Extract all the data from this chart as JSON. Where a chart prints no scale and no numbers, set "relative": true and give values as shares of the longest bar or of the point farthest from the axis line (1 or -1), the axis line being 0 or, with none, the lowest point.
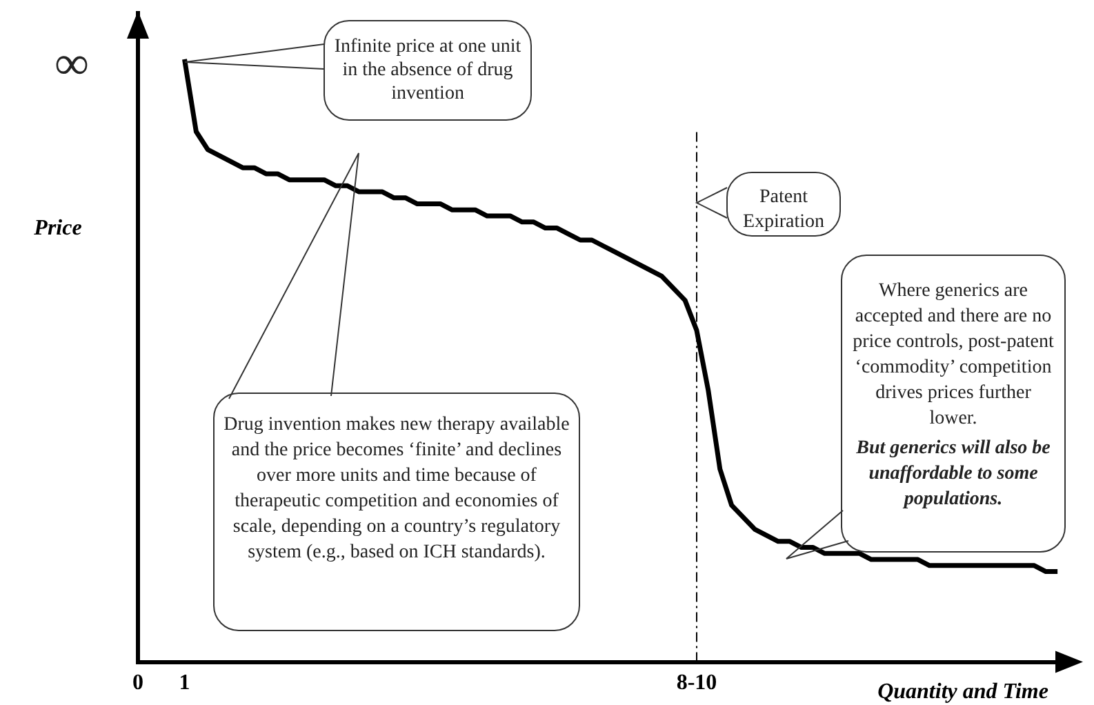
{
  "chart_data": {
    "type": "line",
    "relative": true,
    "xlabel": "Quantity and Time",
    "ylabel": "Price",
    "categories": [
      "0",
      null,
      null,
      null,
      "1",
      null,
      null,
      null,
      null,
      null,
      null,
      null,
      null,
      null,
      null,
      null,
      null,
      null,
      null,
      null,
      null,
      null,
      null,
      null,
      null,
      null,
      null,
      null,
      null,
      null,
      null,
      null,
      null,
      null,
      null,
      null,
      null,
      null,
      null,
      null,
      null,
      null,
      null,
      null,
      null,
      null,
      null,
      null,
      "8-10",
      null,
      null,
      null,
      null,
      null,
      null,
      null,
      null,
      null,
      null,
      null,
      null,
      null,
      null,
      null,
      null,
      null,
      null,
      null,
      null,
      null,
      null,
      null,
      null,
      null,
      null,
      null,
      null,
      null,
      null,
      null,
      null
    ],
    "series": [
      {
        "color": "#000000",
        "values": [
          null,
          null,
          null,
          null,
          1.0,
          0.88,
          0.85,
          0.84,
          0.83,
          0.82,
          0.82,
          0.81,
          0.81,
          0.8,
          0.8,
          0.8,
          0.8,
          0.79,
          0.79,
          0.78,
          0.78,
          0.78,
          0.77,
          0.77,
          0.76,
          0.76,
          0.76,
          0.75,
          0.75,
          0.75,
          0.74,
          0.74,
          0.74,
          0.73,
          0.73,
          0.72,
          0.72,
          0.71,
          0.7,
          0.7,
          0.69,
          0.68,
          0.67,
          0.66,
          0.65,
          0.64,
          0.62,
          0.6,
          0.55,
          0.45,
          0.32,
          0.26,
          0.24,
          0.22,
          0.21,
          0.2,
          0.2,
          0.19,
          0.19,
          0.18,
          0.18,
          0.18,
          0.18,
          0.17,
          0.17,
          0.17,
          0.17,
          0.17,
          0.16,
          0.16,
          0.16,
          0.16,
          0.16,
          0.16,
          0.16,
          0.16,
          0.16,
          0.16,
          0.15,
          0.15,
          null
        ]
      }
    ],
    "ref_lines": [
      {
        "axis": "x",
        "value": "8-10",
        "color": "#000000",
        "line_style": "dashed"
      }
    ],
    "annotations": [
      "∞",
      "Infinite price at one unit in the absence of drug invention",
      "Drug invention makes new therapy available and the price becomes ‘finite’ and declines over more units and time because of therapeutic competition and economies of scale, depending on a country’s regulatory system (e.g., based on ICH standards).",
      "Patent Expiration",
      "Where generics are accepted and there are no price controls, post-patent ‘commodity’ competition drives prices further lower.",
      "But generics will also be unaffordable to some populations."
    ],
    "grid": false,
    "legend": false,
    "marker": "none",
    "line_style": "solid"
  }
}
